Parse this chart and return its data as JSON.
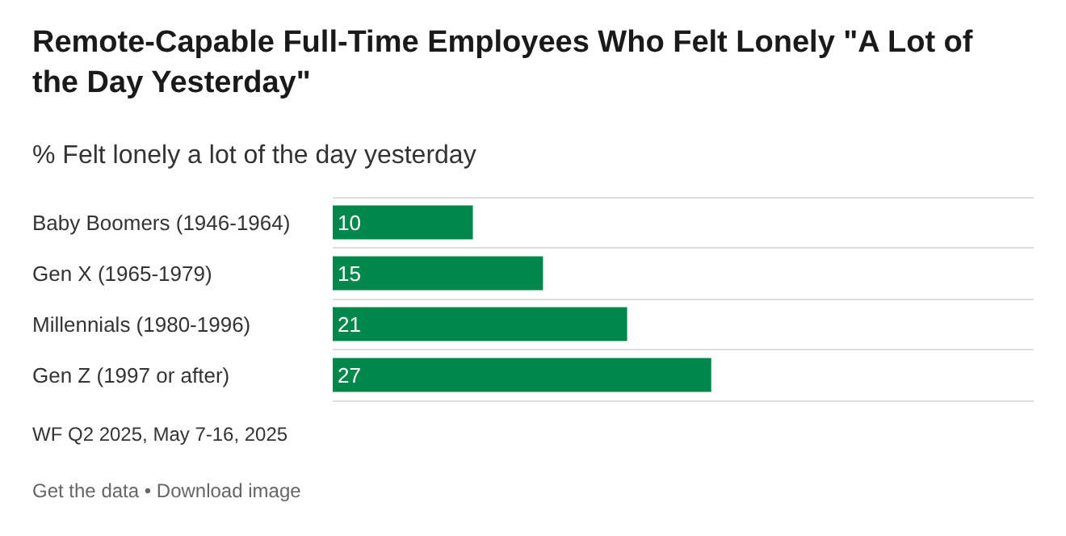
{
  "chart_data": {
    "type": "bar",
    "orientation": "horizontal",
    "title": "Remote-Capable Full-Time Employees Who Felt Lonely \"A Lot of the Day Yesterday\"",
    "subtitle": "% Felt lonely a lot of the day yesterday",
    "categories": [
      "Baby Boomers (1946-1964)",
      "Gen X (1965-1979)",
      "Millennials (1980-1996)",
      "Gen Z (1997 or after)"
    ],
    "values": [
      10,
      15,
      21,
      27
    ],
    "color": "#00874b",
    "xlim": [
      0,
      50
    ],
    "data_labels": true,
    "grid": "y",
    "tick_labels": "y",
    "annotations": [
      "WF Q2 2025, May 7-16, 2025",
      "Get the data • Download image"
    ]
  }
}
